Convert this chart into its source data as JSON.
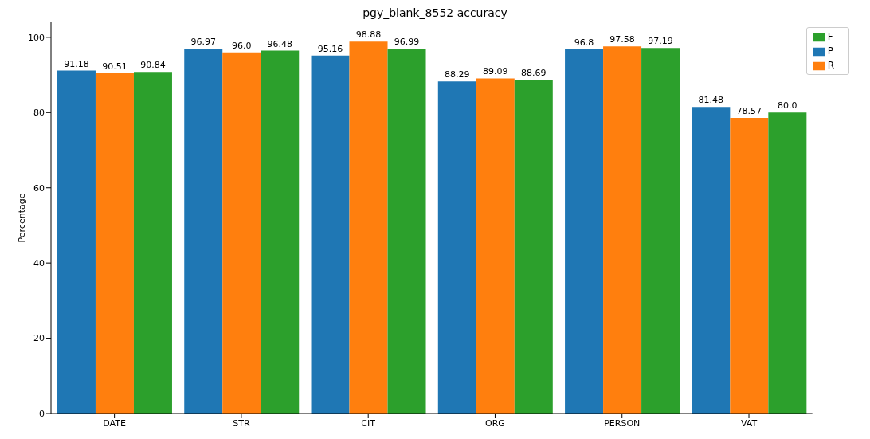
{
  "chart_data": {
    "type": "bar",
    "title": "pgy_blank_8552 accuracy",
    "ylabel": "Percentage",
    "categories": [
      "DATE",
      "STR",
      "CIT",
      "ORG",
      "PERSON",
      "VAT"
    ],
    "series": [
      {
        "name": "P",
        "color": "#1f77b4",
        "values": [
          91.18,
          96.97,
          95.16,
          88.29,
          96.8,
          81.48
        ],
        "value_labels": [
          "91.18",
          "96.97",
          "95.16",
          "88.29",
          "96.8",
          "81.48"
        ]
      },
      {
        "name": "R",
        "color": "#ff7f0e",
        "values": [
          90.51,
          96.0,
          98.88,
          89.09,
          97.58,
          78.57
        ],
        "value_labels": [
          "90.51",
          "96.0",
          "98.88",
          "89.09",
          "97.58",
          "78.57"
        ]
      },
      {
        "name": "F",
        "color": "#2ca02c",
        "values": [
          90.84,
          96.48,
          96.99,
          88.69,
          97.19,
          80.0
        ],
        "value_labels": [
          "90.84",
          "96.48",
          "96.99",
          "88.69",
          "97.19",
          "80.0"
        ]
      }
    ],
    "ylim": [
      0,
      104
    ],
    "yticks": [
      0,
      20,
      40,
      60,
      80,
      100
    ],
    "legend": "top right",
    "grid": false
  }
}
